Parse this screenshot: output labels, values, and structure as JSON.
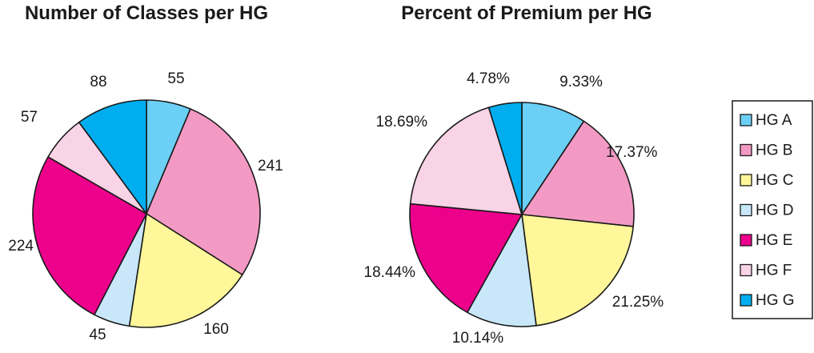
{
  "chart_data": [
    {
      "type": "pie",
      "title": "Number of Classes per HG",
      "categories": [
        "HG A",
        "HG B",
        "HG C",
        "HG D",
        "HG E",
        "HG F",
        "HG G"
      ],
      "values": [
        55,
        241,
        160,
        45,
        224,
        57,
        88
      ],
      "value_labels": [
        "55",
        "241",
        "160",
        "45",
        "224",
        "57",
        "88"
      ],
      "start_angle_deg": 0,
      "direction": "clockwise"
    },
    {
      "type": "pie",
      "title": "Percent of Premium per HG",
      "categories": [
        "HG A",
        "HG B",
        "HG C",
        "HG D",
        "HG E",
        "HG F",
        "HG G"
      ],
      "values": [
        9.33,
        17.37,
        21.25,
        10.14,
        18.44,
        18.69,
        4.78
      ],
      "value_labels": [
        "9.33%",
        "17.37%",
        "21.25%",
        "10.14%",
        "18.44%",
        "18.69%",
        "4.78%"
      ],
      "start_angle_deg": 0,
      "direction": "clockwise"
    }
  ],
  "legend": {
    "position": "right",
    "items": [
      {
        "label": "HG A",
        "color": "#6ccff6"
      },
      {
        "label": "HG B",
        "color": "#f39ac4"
      },
      {
        "label": "HG C",
        "color": "#fff799"
      },
      {
        "label": "HG D",
        "color": "#c8e8f9"
      },
      {
        "label": "HG E",
        "color": "#ec008c"
      },
      {
        "label": "HG F",
        "color": "#f9d3e6"
      },
      {
        "label": "HG G",
        "color": "#00aeef"
      }
    ]
  }
}
